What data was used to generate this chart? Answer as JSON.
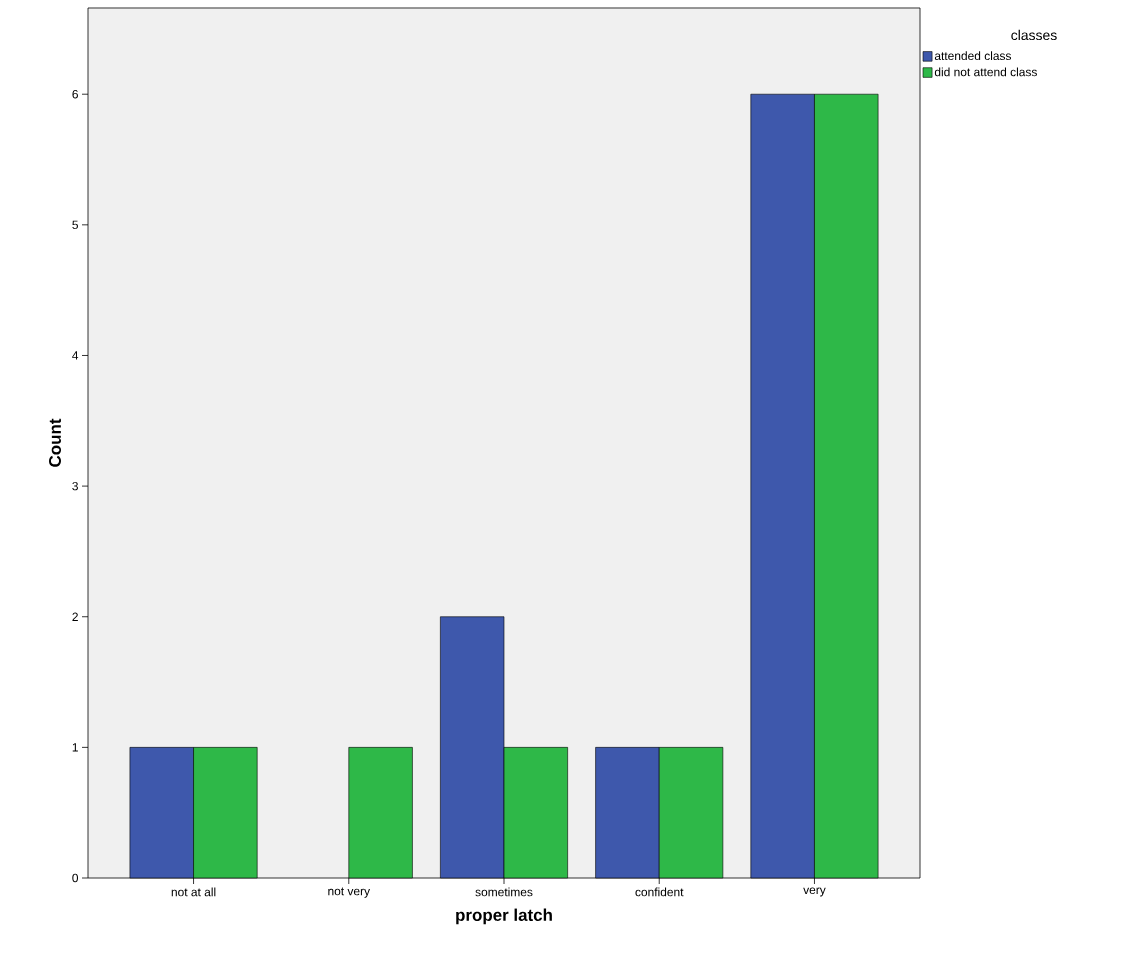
{
  "chart_data": {
    "type": "bar",
    "xlabel": "proper latch",
    "ylabel": "Count",
    "legend_title": "classes",
    "categories": [
      "not at all",
      "not very",
      "sometimes",
      "confident",
      "very"
    ],
    "series": [
      {
        "name": "attended class",
        "color": "#3e58ac",
        "values": [
          1,
          0,
          2,
          1,
          6
        ]
      },
      {
        "name": "did not attend class",
        "color": "#2eb848",
        "values": [
          1,
          1,
          1,
          1,
          6
        ]
      }
    ],
    "ylim": [
      0,
      6.66
    ],
    "yticks": [
      0,
      1,
      2,
      3,
      4,
      5,
      6
    ],
    "grid": false,
    "legend": "top right"
  }
}
